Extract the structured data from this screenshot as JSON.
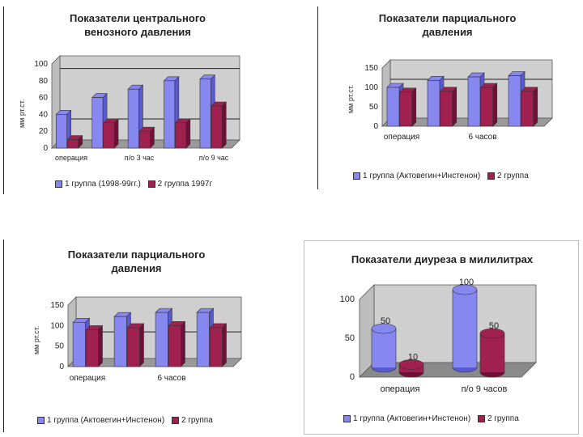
{
  "colors": {
    "series1": "#8787f0",
    "series1_dark": "#5a5ad0",
    "series2": "#a02050",
    "series2_dark": "#701038",
    "wall": "#cfcfcf"
  },
  "chart_data": [
    {
      "type": "bar",
      "title": "Показатели центрального венозного давления",
      "ylabel": "мм рт.ст.",
      "xlabel": "",
      "ylim": [
        0,
        100
      ],
      "yticks": [
        "0",
        "20",
        "40",
        "60",
        "80",
        "100"
      ],
      "xtick_labels": [
        "операция",
        "п/о 3 час",
        "п/о 9 час"
      ],
      "reference_lines": [
        85,
        25
      ],
      "grid": false,
      "legend_position": "bottom",
      "series": [
        {
          "name": "1 группа (1998-99гг.)",
          "values": [
            40,
            60,
            70,
            80,
            82
          ]
        },
        {
          "name": "2 группа 1997г",
          "values": [
            10,
            30,
            20,
            30,
            50
          ]
        }
      ]
    },
    {
      "type": "bar",
      "title": "Показатели парциального давления",
      "ylabel": "мм рт.ст.",
      "xlabel": "",
      "ylim": [
        0,
        150
      ],
      "yticks": [
        "0",
        "50",
        "100",
        "150"
      ],
      "xtick_labels": [
        "операция",
        "6 часов"
      ],
      "reference_lines": [
        100
      ],
      "grid": false,
      "legend_position": "bottom",
      "series": [
        {
          "name": "1 группа (Актовегин+Инстенон)",
          "values": [
            100,
            118,
            127,
            130
          ]
        },
        {
          "name": "2 группа",
          "values": [
            88,
            90,
            100,
            90
          ]
        }
      ]
    },
    {
      "type": "bar",
      "title": "Показатели парциального давления",
      "ylabel": "мм рт.ст.",
      "xlabel": "",
      "ylim": [
        0,
        150
      ],
      "yticks": [
        "0",
        "50",
        "100",
        "150"
      ],
      "xtick_labels": [
        "операция",
        "6 часов"
      ],
      "reference_lines": [
        65
      ],
      "grid": false,
      "legend_position": "bottom",
      "series": [
        {
          "name": "1 группа (Актовегин+Инстенон)",
          "values": [
            108,
            122,
            132,
            132
          ]
        },
        {
          "name": "2 группа",
          "values": [
            90,
            95,
            100,
            95
          ]
        }
      ]
    },
    {
      "type": "bar",
      "title": "Показатели диуреза в милилитрах",
      "ylabel": "",
      "xlabel": "",
      "ylim": [
        0,
        100
      ],
      "yticks": [
        "0",
        "50",
        "100"
      ],
      "categories": [
        "операция",
        "п/о 9 часов"
      ],
      "grid": false,
      "legend_position": "bottom",
      "series": [
        {
          "name": "1 группа (Актовегин+Инстенон)",
          "values": [
            50,
            100
          ],
          "labels": [
            "50",
            "100"
          ]
        },
        {
          "name": "2 группа",
          "values": [
            10,
            50
          ],
          "labels": [
            "10",
            "50"
          ]
        }
      ]
    }
  ]
}
